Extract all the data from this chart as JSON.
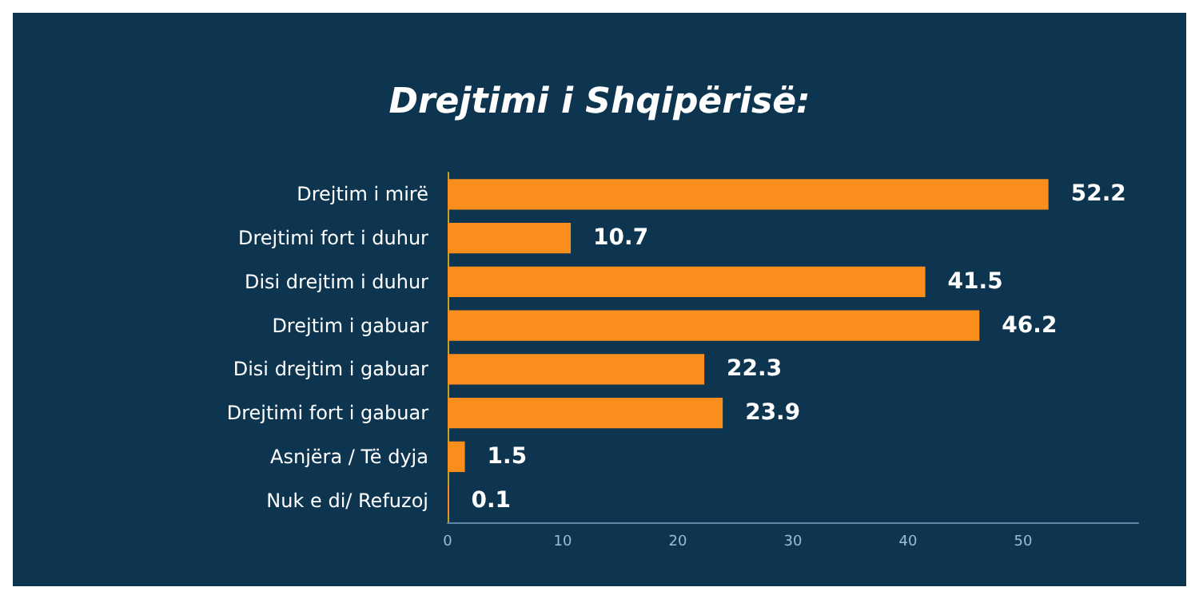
{
  "chart_data": {
    "type": "bar",
    "orientation": "horizontal",
    "title": "Drejtimi i Shqipërisë:",
    "categories": [
      "Drejtim i mirë",
      "Drejtimi fort i duhur",
      "Disi drejtim i duhur",
      "Drejtim i gabuar",
      "Disi drejtim i gabuar",
      "Drejtimi fort i gabuar",
      "Asnjëra / Të dyja",
      "Nuk e di/ Refuzoj"
    ],
    "values": [
      52.2,
      10.7,
      41.5,
      46.2,
      22.3,
      23.9,
      1.5,
      0.1
    ],
    "color": "#f98e1c",
    "xlim": [
      0,
      60
    ],
    "xticks": [
      0,
      10,
      20,
      30,
      40,
      50
    ],
    "data_labels": true,
    "grid": false
  }
}
